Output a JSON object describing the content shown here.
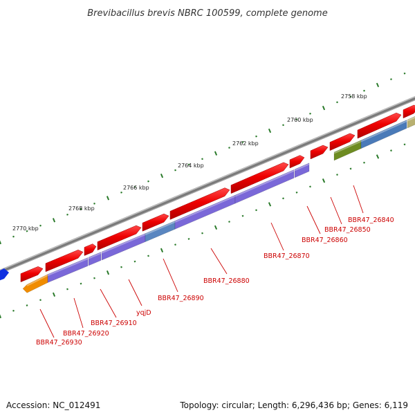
{
  "title": "Brevibacillus brevis NBRC 100599, complete genome",
  "footer": {
    "accession": "Accession: NC_012491",
    "summary": "Topology: circular; Length: 6,296,436 bp; Genes: 6,119"
  },
  "ticks": [
    "2770 kbp",
    "2768 kbp",
    "2766 kbp",
    "2764 kbp",
    "2762 kbp",
    "2760 kbp",
    "2758 kbp"
  ],
  "genes": [
    {
      "label": "BBR47_26930",
      "color": "#f08c00"
    },
    {
      "label": "BBR47_26920",
      "color": "#7a68d8"
    },
    {
      "label": "BBR47_26910",
      "color": "#7a68d8"
    },
    {
      "label": "yqjD",
      "color": "#7a68d8"
    },
    {
      "label": "BBR47_26890",
      "color": "#5a86c0"
    },
    {
      "label": "BBR47_26880",
      "color": "#7a68d8"
    },
    {
      "label": "BBR47_26870",
      "color": "#7a68d8"
    },
    {
      "label": "BBR47_26860",
      "color": "#7a68d8"
    },
    {
      "label": "BBR47_26850",
      "color": "#6e8c22"
    },
    {
      "label": "BBR47_26840",
      "color": "#4a7ab8"
    }
  ],
  "colors": {
    "backbone": "#808080",
    "forward_cds": "#ee0000",
    "label_line": "#cc0000",
    "tick_marks": "#2a7a2a",
    "edge_gene": "#1030e0",
    "khaki_gene": "#b8b070"
  }
}
